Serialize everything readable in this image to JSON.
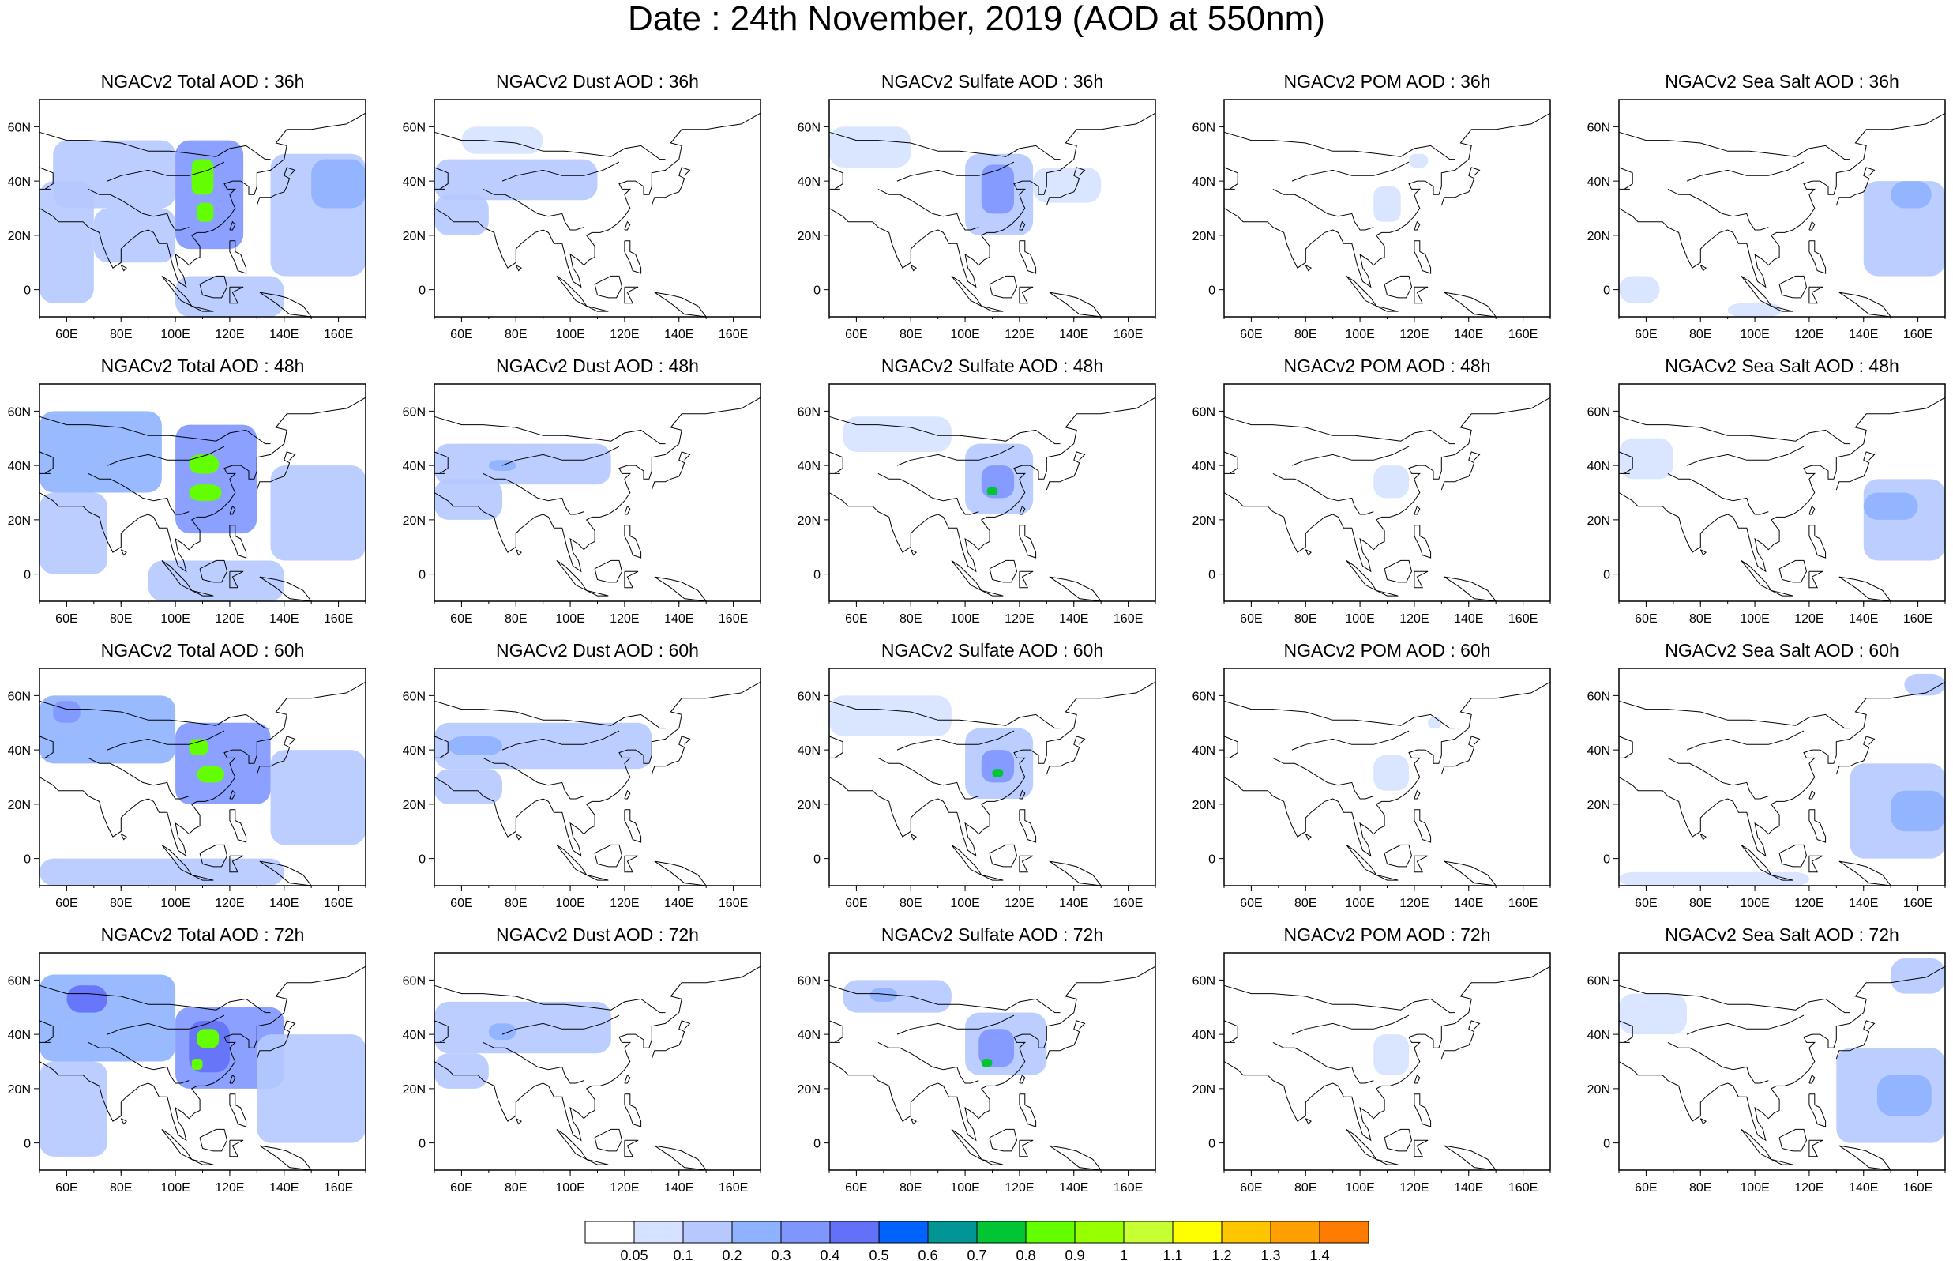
{
  "title": "Date : 24th November, 2019 (AOD at 550nm)",
  "forecast_hours": [
    "36h",
    "48h",
    "60h",
    "72h"
  ],
  "species": [
    {
      "key": "total",
      "label": "Total AOD"
    },
    {
      "key": "dust",
      "label": "Dust AOD"
    },
    {
      "key": "sulfate",
      "label": "Sulfate AOD"
    },
    {
      "key": "pom",
      "label": "POM AOD"
    },
    {
      "key": "seasalt",
      "label": "Sea Salt AOD"
    }
  ],
  "panel_titles": [
    [
      "NGACv2 Total AOD : 36h",
      "NGACv2 Dust AOD : 36h",
      "NGACv2 Sulfate AOD : 36h",
      "NGACv2 POM AOD : 36h",
      "NGACv2 Sea Salt AOD : 36h"
    ],
    [
      "NGACv2 Total AOD : 48h",
      "NGACv2 Dust AOD : 48h",
      "NGACv2 Sulfate AOD : 48h",
      "NGACv2 POM AOD : 48h",
      "NGACv2 Sea Salt AOD : 48h"
    ],
    [
      "NGACv2 Total AOD : 60h",
      "NGACv2 Dust AOD : 60h",
      "NGACv2 Sulfate AOD : 60h",
      "NGACv2 POM AOD : 60h",
      "NGACv2 Sea Salt AOD : 60h"
    ],
    [
      "NGACv2 Total AOD : 72h",
      "NGACv2 Dust AOD : 72h",
      "NGACv2 Sulfate AOD : 72h",
      "NGACv2 POM AOD : 72h",
      "NGACv2 Sea Salt  AOD : 72h"
    ]
  ],
  "map_extent": {
    "lon": [
      50,
      170
    ],
    "lat": [
      -10,
      70
    ]
  },
  "lon_ticks": {
    "values": [
      60,
      80,
      100,
      120,
      140,
      160
    ],
    "labels": [
      "60E",
      "80E",
      "100E",
      "120E",
      "140E",
      "160E"
    ]
  },
  "lat_ticks": {
    "values": [
      0,
      20,
      40,
      60
    ],
    "labels": [
      "0",
      "20N",
      "40N",
      "60N"
    ]
  },
  "colorbar": {
    "labels": [
      "0.05",
      "0.1",
      "0.2",
      "0.3",
      "0.4",
      "0.5",
      "0.6",
      "0.7",
      "0.8",
      "0.9",
      "1",
      "1.1",
      "1.2",
      "1.3",
      "1.4"
    ],
    "colors": [
      "#ffffff",
      "#d6e2ff",
      "#b5c9ff",
      "#8eb2ff",
      "#7f96ff",
      "#6370f8",
      "#0063ff",
      "#009696",
      "#00c633",
      "#63ff00",
      "#96ff00",
      "#c6ff33",
      "#ffff00",
      "#ffc600",
      "#ffa000",
      "#ff7c00",
      "#ff1900"
    ]
  },
  "aod_fields": {
    "total": [
      [
        {
          "lon": [
            55,
            100
          ],
          "lat": [
            30,
            55
          ],
          "v": 0.15
        },
        {
          "lon": [
            50,
            70
          ],
          "lat": [
            -5,
            40
          ],
          "v": 0.15
        },
        {
          "lon": [
            70,
            100
          ],
          "lat": [
            10,
            30
          ],
          "v": 0.12
        },
        {
          "lon": [
            100,
            125
          ],
          "lat": [
            15,
            55
          ],
          "v": 0.3
        },
        {
          "lon": [
            106,
            114
          ],
          "lat": [
            35,
            48
          ],
          "v": 0.85
        },
        {
          "lon": [
            108,
            114
          ],
          "lat": [
            25,
            32
          ],
          "v": 0.85
        },
        {
          "lon": [
            135,
            170
          ],
          "lat": [
            5,
            50
          ],
          "v": 0.15
        },
        {
          "lon": [
            100,
            140
          ],
          "lat": [
            -10,
            5
          ],
          "v": 0.15
        },
        {
          "lon": [
            150,
            170
          ],
          "lat": [
            30,
            48
          ],
          "v": 0.25
        }
      ],
      [
        {
          "lon": [
            50,
            95
          ],
          "lat": [
            30,
            60
          ],
          "v": 0.2
        },
        {
          "lon": [
            50,
            75
          ],
          "lat": [
            0,
            30
          ],
          "v": 0.15
        },
        {
          "lon": [
            100,
            130
          ],
          "lat": [
            15,
            55
          ],
          "v": 0.3
        },
        {
          "lon": [
            105,
            116
          ],
          "lat": [
            37,
            44
          ],
          "v": 0.85
        },
        {
          "lon": [
            105,
            117
          ],
          "lat": [
            27,
            33
          ],
          "v": 0.85
        },
        {
          "lon": [
            135,
            170
          ],
          "lat": [
            5,
            40
          ],
          "v": 0.15
        },
        {
          "lon": [
            90,
            140
          ],
          "lat": [
            -10,
            5
          ],
          "v": 0.12
        }
      ],
      [
        {
          "lon": [
            50,
            100
          ],
          "lat": [
            35,
            60
          ],
          "v": 0.2
        },
        {
          "lon": [
            55,
            65
          ],
          "lat": [
            50,
            58
          ],
          "v": 0.35
        },
        {
          "lon": [
            100,
            135
          ],
          "lat": [
            20,
            50
          ],
          "v": 0.3
        },
        {
          "lon": [
            105,
            112
          ],
          "lat": [
            38,
            44
          ],
          "v": 0.85
        },
        {
          "lon": [
            108,
            118
          ],
          "lat": [
            28,
            34
          ],
          "v": 0.85
        },
        {
          "lon": [
            135,
            170
          ],
          "lat": [
            5,
            40
          ],
          "v": 0.15
        },
        {
          "lon": [
            50,
            140
          ],
          "lat": [
            -10,
            0
          ],
          "v": 0.12
        }
      ],
      [
        {
          "lon": [
            50,
            100
          ],
          "lat": [
            30,
            62
          ],
          "v": 0.2
        },
        {
          "lon": [
            60,
            75
          ],
          "lat": [
            48,
            58
          ],
          "v": 0.4
        },
        {
          "lon": [
            100,
            140
          ],
          "lat": [
            20,
            50
          ],
          "v": 0.3
        },
        {
          "lon": [
            105,
            120
          ],
          "lat": [
            26,
            45
          ],
          "v": 0.4
        },
        {
          "lon": [
            108,
            116
          ],
          "lat": [
            35,
            42
          ],
          "v": 0.85
        },
        {
          "lon": [
            106,
            110
          ],
          "lat": [
            27,
            31
          ],
          "v": 0.85
        },
        {
          "lon": [
            50,
            75
          ],
          "lat": [
            -5,
            30
          ],
          "v": 0.15
        },
        {
          "lon": [
            130,
            170
          ],
          "lat": [
            0,
            40
          ],
          "v": 0.15
        }
      ]
    ],
    "dust": [
      [
        {
          "lon": [
            50,
            110
          ],
          "lat": [
            33,
            48
          ],
          "v": 0.12
        },
        {
          "lon": [
            50,
            70
          ],
          "lat": [
            20,
            35
          ],
          "v": 0.12
        },
        {
          "lon": [
            60,
            90
          ],
          "lat": [
            50,
            60
          ],
          "v": 0.08
        }
      ],
      [
        {
          "lon": [
            50,
            115
          ],
          "lat": [
            33,
            48
          ],
          "v": 0.12
        },
        {
          "lon": [
            50,
            75
          ],
          "lat": [
            20,
            35
          ],
          "v": 0.12
        },
        {
          "lon": [
            70,
            80
          ],
          "lat": [
            38,
            42
          ],
          "v": 0.2
        }
      ],
      [
        {
          "lon": [
            50,
            130
          ],
          "lat": [
            33,
            50
          ],
          "v": 0.12
        },
        {
          "lon": [
            50,
            75
          ],
          "lat": [
            20,
            33
          ],
          "v": 0.12
        },
        {
          "lon": [
            55,
            75
          ],
          "lat": [
            38,
            45
          ],
          "v": 0.2
        }
      ],
      [
        {
          "lon": [
            50,
            115
          ],
          "lat": [
            33,
            52
          ],
          "v": 0.12
        },
        {
          "lon": [
            50,
            70
          ],
          "lat": [
            20,
            33
          ],
          "v": 0.12
        },
        {
          "lon": [
            70,
            80
          ],
          "lat": [
            38,
            44
          ],
          "v": 0.2
        }
      ]
    ],
    "sulfate": [
      [
        {
          "lon": [
            100,
            125
          ],
          "lat": [
            20,
            50
          ],
          "v": 0.15
        },
        {
          "lon": [
            106,
            118
          ],
          "lat": [
            28,
            46
          ],
          "v": 0.3
        },
        {
          "lon": [
            50,
            80
          ],
          "lat": [
            45,
            60
          ],
          "v": 0.08
        },
        {
          "lon": [
            125,
            150
          ],
          "lat": [
            32,
            45
          ],
          "v": 0.08
        }
      ],
      [
        {
          "lon": [
            55,
            95
          ],
          "lat": [
            45,
            58
          ],
          "v": 0.08
        },
        {
          "lon": [
            100,
            125
          ],
          "lat": [
            22,
            48
          ],
          "v": 0.15
        },
        {
          "lon": [
            106,
            118
          ],
          "lat": [
            28,
            40
          ],
          "v": 0.3
        },
        {
          "lon": [
            108,
            112
          ],
          "lat": [
            29,
            32
          ],
          "v": 0.75
        }
      ],
      [
        {
          "lon": [
            50,
            95
          ],
          "lat": [
            45,
            60
          ],
          "v": 0.08
        },
        {
          "lon": [
            100,
            125
          ],
          "lat": [
            22,
            48
          ],
          "v": 0.15
        },
        {
          "lon": [
            106,
            118
          ],
          "lat": [
            28,
            40
          ],
          "v": 0.3
        },
        {
          "lon": [
            110,
            114
          ],
          "lat": [
            30,
            33
          ],
          "v": 0.75
        }
      ],
      [
        {
          "lon": [
            55,
            95
          ],
          "lat": [
            48,
            60
          ],
          "v": 0.12
        },
        {
          "lon": [
            65,
            75
          ],
          "lat": [
            52,
            57
          ],
          "v": 0.25
        },
        {
          "lon": [
            100,
            130
          ],
          "lat": [
            25,
            48
          ],
          "v": 0.15
        },
        {
          "lon": [
            105,
            118
          ],
          "lat": [
            28,
            42
          ],
          "v": 0.3
        },
        {
          "lon": [
            106,
            110
          ],
          "lat": [
            28,
            31
          ],
          "v": 0.75
        }
      ]
    ],
    "pom": [
      [
        {
          "lon": [
            105,
            115
          ],
          "lat": [
            25,
            38
          ],
          "v": 0.08
        },
        {
          "lon": [
            118,
            125
          ],
          "lat": [
            45,
            50
          ],
          "v": 0.06
        }
      ],
      [
        {
          "lon": [
            105,
            118
          ],
          "lat": [
            28,
            40
          ],
          "v": 0.08
        }
      ],
      [
        {
          "lon": [
            105,
            118
          ],
          "lat": [
            25,
            38
          ],
          "v": 0.08
        },
        {
          "lon": [
            125,
            130
          ],
          "lat": [
            48,
            52
          ],
          "v": 0.06
        }
      ],
      [
        {
          "lon": [
            105,
            118
          ],
          "lat": [
            25,
            40
          ],
          "v": 0.08
        }
      ]
    ],
    "seasalt": [
      [
        {
          "lon": [
            140,
            170
          ],
          "lat": [
            5,
            40
          ],
          "v": 0.12
        },
        {
          "lon": [
            150,
            165
          ],
          "lat": [
            30,
            40
          ],
          "v": 0.2
        },
        {
          "lon": [
            50,
            65
          ],
          "lat": [
            -5,
            5
          ],
          "v": 0.08
        },
        {
          "lon": [
            90,
            110
          ],
          "lat": [
            -10,
            -5
          ],
          "v": 0.08
        }
      ],
      [
        {
          "lon": [
            140,
            170
          ],
          "lat": [
            5,
            35
          ],
          "v": 0.12
        },
        {
          "lon": [
            140,
            160
          ],
          "lat": [
            20,
            30
          ],
          "v": 0.2
        },
        {
          "lon": [
            50,
            70
          ],
          "lat": [
            35,
            50
          ],
          "v": 0.06
        }
      ],
      [
        {
          "lon": [
            135,
            170
          ],
          "lat": [
            0,
            35
          ],
          "v": 0.12
        },
        {
          "lon": [
            150,
            170
          ],
          "lat": [
            10,
            25
          ],
          "v": 0.2
        },
        {
          "lon": [
            50,
            120
          ],
          "lat": [
            -10,
            -5
          ],
          "v": 0.06
        },
        {
          "lon": [
            155,
            170
          ],
          "lat": [
            60,
            68
          ],
          "v": 0.12
        }
      ],
      [
        {
          "lon": [
            130,
            170
          ],
          "lat": [
            0,
            35
          ],
          "v": 0.12
        },
        {
          "lon": [
            145,
            165
          ],
          "lat": [
            10,
            25
          ],
          "v": 0.2
        },
        {
          "lon": [
            50,
            75
          ],
          "lat": [
            40,
            55
          ],
          "v": 0.08
        },
        {
          "lon": [
            150,
            170
          ],
          "lat": [
            55,
            68
          ],
          "v": 0.12
        }
      ]
    ]
  }
}
